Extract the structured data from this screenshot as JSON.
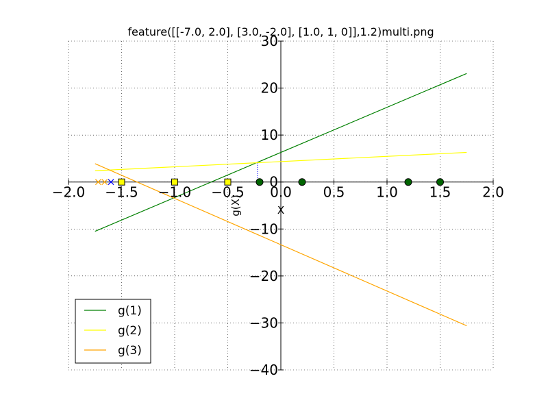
{
  "chart_data": {
    "type": "line",
    "title": "feature([[-7.0, 2.0], [3.0, -2.0], [1.0, 1, 0]],1.2)multi.png",
    "xlabel": "X",
    "ylabel": "g(X)",
    "xlim": [
      -2.0,
      2.0
    ],
    "ylim": [
      -40,
      30
    ],
    "xticks": [
      "−2.0",
      "−1.5",
      "−1.0",
      "−0.5",
      "0.0",
      "0.5",
      "1.0",
      "1.5",
      "2.0"
    ],
    "xtick_values": [
      -2.0,
      -1.5,
      -1.0,
      -0.5,
      0.0,
      0.5,
      1.0,
      1.5,
      2.0
    ],
    "yticks": [
      "−40",
      "−30",
      "−20",
      "−10",
      "0",
      "10",
      "20",
      "30"
    ],
    "ytick_values": [
      -40,
      -30,
      -20,
      -10,
      0,
      10,
      20,
      30
    ],
    "grid": true,
    "legend_position": "lower-left",
    "series": [
      {
        "name": "g(1)",
        "color": "#008000",
        "x": [
          -1.75,
          1.75
        ],
        "y": [
          -10.5,
          23.1
        ]
      },
      {
        "name": "g(2)",
        "color": "#ffff00",
        "x": [
          -1.75,
          1.75
        ],
        "y": [
          2.4,
          6.3
        ]
      },
      {
        "name": "g(3)",
        "color": "#ffa500",
        "x": [
          -1.75,
          1.75
        ],
        "y": [
          3.9,
          -30.6
        ]
      }
    ],
    "markers": {
      "green_circles": {
        "color": "#006400",
        "x": [
          -0.2,
          0.2,
          1.2,
          1.5
        ],
        "y": [
          0,
          0,
          0,
          0
        ]
      },
      "yellow_squares": {
        "color": "#ffff00",
        "x": [
          -1.5,
          -1.0,
          -0.5
        ],
        "y": [
          0,
          0,
          0
        ]
      },
      "orange_crosses": {
        "color": "#ffa500",
        "x": [
          -1.72,
          -1.66
        ],
        "y": [
          0,
          0
        ]
      },
      "blue_cross": {
        "color": "#0000ff",
        "x": [
          -1.6
        ],
        "y": [
          0
        ]
      }
    },
    "annotations": [
      {
        "type": "dotted-vertical",
        "color": "#0000ff",
        "x": -0.22,
        "y": [
          0,
          4
        ]
      }
    ]
  }
}
